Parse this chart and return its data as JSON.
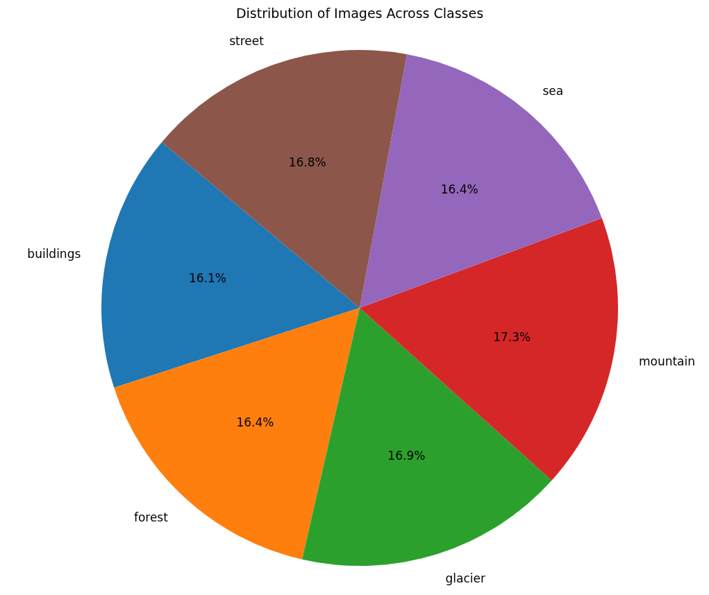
{
  "chart_data": {
    "type": "pie",
    "title": "Distribution of Images Across Classes",
    "categories": [
      "buildings",
      "forest",
      "glacier",
      "mountain",
      "sea",
      "street"
    ],
    "values": [
      16.1,
      16.4,
      16.9,
      17.3,
      16.4,
      16.8
    ],
    "colors": [
      "#1f77b4",
      "#ff7f0e",
      "#2ca02c",
      "#d62728",
      "#9467bd",
      "#8c564b"
    ],
    "value_labels": [
      "16.1%",
      "16.4%",
      "16.9%",
      "17.3%",
      "16.4%",
      "16.8%"
    ]
  }
}
